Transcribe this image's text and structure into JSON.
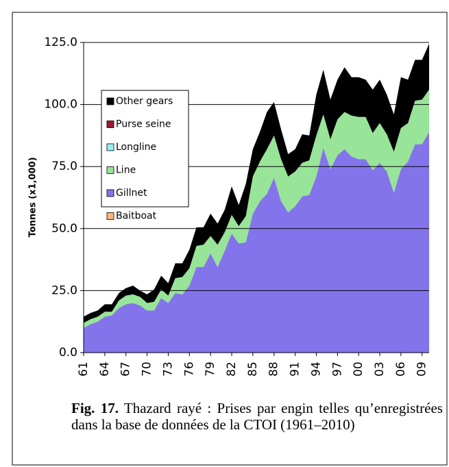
{
  "chart_data": {
    "type": "stacked_area",
    "y_label": "Tonnes (x1,000)",
    "caption_label": "Fig. 17.",
    "caption": "Thazard rayé : Prises par engin telles qu’enregistrées dans la base de données de la CTOI (1961–2010)",
    "categories": [
      "61",
      null,
      null,
      "64",
      null,
      null,
      "67",
      null,
      null,
      "70",
      null,
      null,
      "73",
      null,
      null,
      "76",
      null,
      null,
      "79",
      null,
      null,
      "82",
      null,
      null,
      "85",
      null,
      null,
      "88",
      null,
      null,
      "91",
      null,
      null,
      "94",
      null,
      null,
      "97",
      null,
      null,
      "00",
      null,
      null,
      "03",
      null,
      null,
      "06",
      null,
      null,
      "09",
      null
    ],
    "ylim": [
      0,
      125
    ],
    "yticks": [
      {
        "value": 0,
        "label": "0.0"
      },
      {
        "value": 25,
        "label": "25.0"
      },
      {
        "value": 50,
        "label": "50.0"
      },
      {
        "value": 75,
        "label": "75.0"
      },
      {
        "value": 100,
        "label": "100.0"
      },
      {
        "value": 125,
        "label": "125.0"
      }
    ],
    "grid": true,
    "legend": "upper left",
    "series": [
      {
        "name": "Baitboat",
        "color": "#f9b47f",
        "values": [
          0,
          0,
          0,
          0,
          0,
          0,
          0,
          0,
          0,
          0,
          0,
          0,
          0,
          0,
          0,
          0,
          0,
          0,
          0,
          0,
          0,
          0,
          0,
          0,
          0,
          0,
          0,
          0,
          0,
          0,
          0,
          0,
          0,
          0,
          0,
          0,
          0,
          0,
          0,
          0,
          0,
          0,
          0,
          0,
          0,
          0,
          0,
          0,
          0,
          0
        ]
      },
      {
        "name": "Gillnet",
        "color": "#8474ec",
        "values": [
          10,
          11.5,
          12.5,
          14.5,
          15,
          18,
          19.5,
          20,
          19,
          17,
          17,
          22,
          20,
          24,
          23.5,
          27,
          34.5,
          34.5,
          40,
          34.5,
          41,
          48,
          44,
          44.5,
          56,
          61,
          64,
          70.5,
          61,
          56.5,
          59,
          63,
          63.5,
          71,
          82.5,
          74,
          79.5,
          82,
          79,
          78,
          78,
          73.5,
          76.5,
          73,
          64.5,
          74,
          77,
          84,
          84,
          89
        ]
      },
      {
        "name": "Line",
        "color": "#98e498",
        "values": [
          2,
          2,
          2,
          2,
          1.5,
          3,
          3.5,
          3.5,
          3.5,
          3,
          3.5,
          3.5,
          3,
          6,
          7,
          7,
          8.5,
          9,
          7,
          9,
          7.5,
          7.5,
          7,
          10.5,
          15,
          16,
          18,
          17,
          17,
          14.5,
          14,
          13.5,
          14,
          16.5,
          13.5,
          12,
          14.5,
          15,
          16.5,
          17,
          17,
          15,
          16,
          15,
          16.5,
          16.5,
          15.5,
          17.5,
          18,
          17
        ]
      },
      {
        "name": "Longline",
        "color": "#9cefef",
        "values": [
          0,
          0,
          0,
          0,
          0,
          0,
          0,
          0,
          0,
          0,
          0,
          0,
          0,
          0,
          0,
          0,
          0,
          0,
          0,
          0,
          0,
          0,
          0,
          0,
          0,
          0,
          0,
          0,
          0,
          0,
          0,
          0,
          0,
          0,
          0,
          0,
          0,
          0,
          0,
          0,
          0,
          0,
          0,
          0,
          0,
          0,
          0,
          0,
          0,
          0
        ]
      },
      {
        "name": "Purse seine",
        "color": "#a01830",
        "values": [
          0,
          0,
          0,
          0,
          0,
          0,
          0,
          0,
          0,
          0,
          0,
          0,
          0,
          0,
          0,
          0,
          0,
          0,
          0,
          0,
          0,
          0,
          0,
          0,
          0,
          0,
          0,
          0,
          0,
          0,
          0,
          0,
          0,
          0,
          0,
          0,
          0,
          0,
          0,
          0,
          0,
          0,
          0,
          0,
          0,
          0,
          0,
          0,
          0,
          0
        ]
      },
      {
        "name": "Other gears",
        "color": "#000000",
        "values": [
          2.5,
          2.5,
          2.5,
          3,
          3,
          3,
          3,
          3.5,
          2.5,
          3.5,
          5,
          5.5,
          5,
          6,
          5.5,
          7.5,
          7.5,
          7,
          9,
          8.5,
          9,
          11.5,
          8.5,
          13,
          11,
          12,
          15,
          13.5,
          12,
          9,
          9,
          11.5,
          10,
          16.5,
          18,
          16,
          16,
          18,
          15.5,
          16,
          15,
          17.5,
          17.5,
          16,
          15,
          20.5,
          17.5,
          16.5,
          16,
          18.5
        ]
      }
    ]
  }
}
